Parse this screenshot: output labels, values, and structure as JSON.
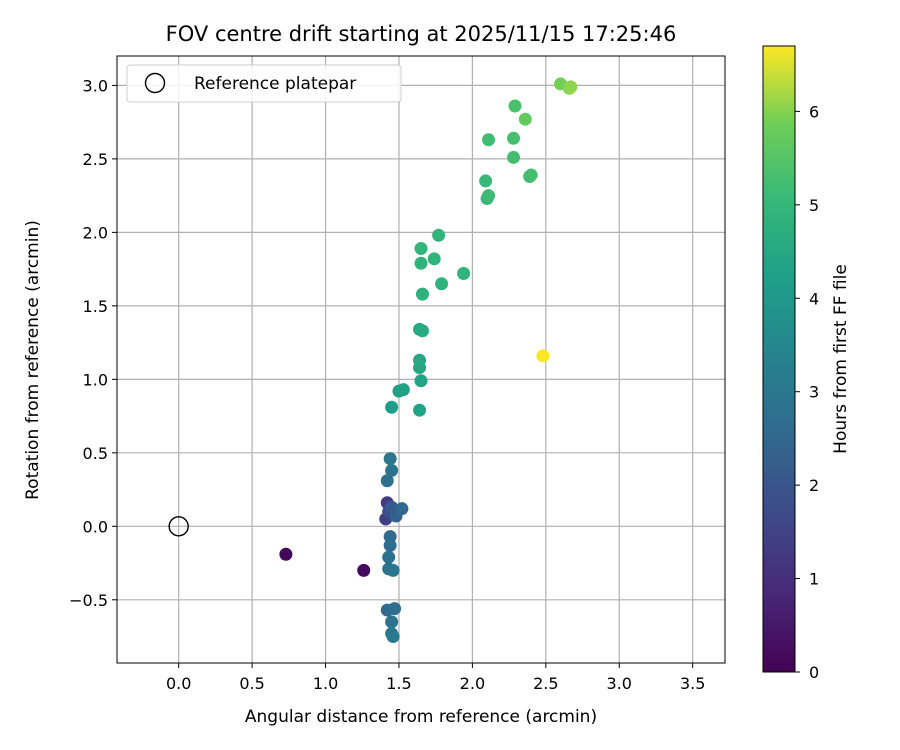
{
  "chart_data": {
    "type": "scatter",
    "title": "FOV centre drift starting at 2025/11/15 17:25:46",
    "xlabel": "Angular distance from reference (arcmin)",
    "ylabel": "Rotation from reference (arcmin)",
    "xlim": [
      -0.42,
      3.72
    ],
    "ylim": [
      -0.93,
      3.2
    ],
    "x_ticks": [
      0.0,
      0.5,
      1.0,
      1.5,
      2.0,
      2.5,
      3.0,
      3.5
    ],
    "x_tick_labels": [
      "0.0",
      "0.5",
      "1.0",
      "1.5",
      "2.0",
      "2.5",
      "3.0",
      "3.5"
    ],
    "y_ticks": [
      -0.5,
      0.0,
      0.5,
      1.0,
      1.5,
      2.0,
      2.5,
      3.0
    ],
    "y_tick_labels": [
      "−0.5",
      "0.0",
      "0.5",
      "1.0",
      "1.5",
      "2.0",
      "2.5",
      "3.0"
    ],
    "grid": true,
    "legend": {
      "placement": "top-left",
      "entries": [
        "Reference platepar"
      ]
    },
    "reference_point": {
      "x": 0.0,
      "y": 0.0
    },
    "colorbar": {
      "label": "Hours from first FF file",
      "range": [
        0,
        6.7
      ],
      "ticks": [
        0,
        1,
        2,
        3,
        4,
        5,
        6
      ],
      "tick_labels": [
        "0",
        "1",
        "2",
        "3",
        "4",
        "5",
        "6"
      ],
      "colormap": "viridis"
    },
    "points": [
      {
        "x": 0.73,
        "y": -0.19,
        "c": 0.1
      },
      {
        "x": 1.26,
        "y": -0.3,
        "c": 0.2
      },
      {
        "x": 1.42,
        "y": 0.16,
        "c": 1.3
      },
      {
        "x": 1.41,
        "y": 0.05,
        "c": 1.4
      },
      {
        "x": 1.43,
        "y": 0.1,
        "c": 1.8
      },
      {
        "x": 1.45,
        "y": 0.13,
        "c": 2.1
      },
      {
        "x": 1.48,
        "y": 0.07,
        "c": 2.3
      },
      {
        "x": 1.52,
        "y": 0.12,
        "c": 2.5
      },
      {
        "x": 1.44,
        "y": -0.07,
        "c": 2.6
      },
      {
        "x": 1.44,
        "y": -0.13,
        "c": 2.7
      },
      {
        "x": 1.43,
        "y": -0.21,
        "c": 2.8
      },
      {
        "x": 1.43,
        "y": -0.29,
        "c": 2.9
      },
      {
        "x": 1.46,
        "y": -0.3,
        "c": 2.95
      },
      {
        "x": 1.42,
        "y": -0.57,
        "c": 2.6
      },
      {
        "x": 1.47,
        "y": -0.56,
        "c": 2.7
      },
      {
        "x": 1.45,
        "y": -0.65,
        "c": 2.9
      },
      {
        "x": 1.45,
        "y": -0.73,
        "c": 3.0
      },
      {
        "x": 1.46,
        "y": -0.75,
        "c": 3.05
      },
      {
        "x": 1.42,
        "y": 0.31,
        "c": 2.8
      },
      {
        "x": 1.45,
        "y": 0.38,
        "c": 2.9
      },
      {
        "x": 1.44,
        "y": 0.46,
        "c": 3.0
      },
      {
        "x": 1.45,
        "y": 0.81,
        "c": 4.2
      },
      {
        "x": 1.5,
        "y": 0.92,
        "c": 4.25
      },
      {
        "x": 1.53,
        "y": 0.93,
        "c": 4.3
      },
      {
        "x": 1.64,
        "y": 0.79,
        "c": 4.35
      },
      {
        "x": 1.65,
        "y": 0.99,
        "c": 4.4
      },
      {
        "x": 1.64,
        "y": 1.08,
        "c": 4.45
      },
      {
        "x": 1.64,
        "y": 1.13,
        "c": 4.5
      },
      {
        "x": 1.64,
        "y": 1.34,
        "c": 4.55
      },
      {
        "x": 1.66,
        "y": 1.33,
        "c": 4.6
      },
      {
        "x": 1.66,
        "y": 1.58,
        "c": 4.8
      },
      {
        "x": 1.65,
        "y": 1.79,
        "c": 4.9
      },
      {
        "x": 1.65,
        "y": 1.89,
        "c": 4.95
      },
      {
        "x": 1.74,
        "y": 1.82,
        "c": 4.9
      },
      {
        "x": 1.77,
        "y": 1.98,
        "c": 4.95
      },
      {
        "x": 1.79,
        "y": 1.65,
        "c": 4.85
      },
      {
        "x": 1.94,
        "y": 1.72,
        "c": 4.9
      },
      {
        "x": 2.09,
        "y": 2.35,
        "c": 5.05
      },
      {
        "x": 2.1,
        "y": 2.23,
        "c": 5.1
      },
      {
        "x": 2.11,
        "y": 2.25,
        "c": 5.15
      },
      {
        "x": 2.11,
        "y": 2.63,
        "c": 5.2
      },
      {
        "x": 2.28,
        "y": 2.51,
        "c": 5.25
      },
      {
        "x": 2.28,
        "y": 2.64,
        "c": 5.3
      },
      {
        "x": 2.29,
        "y": 2.86,
        "c": 5.35
      },
      {
        "x": 2.39,
        "y": 2.38,
        "c": 5.2
      },
      {
        "x": 2.4,
        "y": 2.39,
        "c": 5.25
      },
      {
        "x": 2.36,
        "y": 2.77,
        "c": 5.7
      },
      {
        "x": 2.6,
        "y": 3.01,
        "c": 5.9
      },
      {
        "x": 2.66,
        "y": 2.98,
        "c": 6.0
      },
      {
        "x": 2.67,
        "y": 2.99,
        "c": 6.05
      },
      {
        "x": 2.48,
        "y": 1.16,
        "c": 6.7
      }
    ]
  }
}
